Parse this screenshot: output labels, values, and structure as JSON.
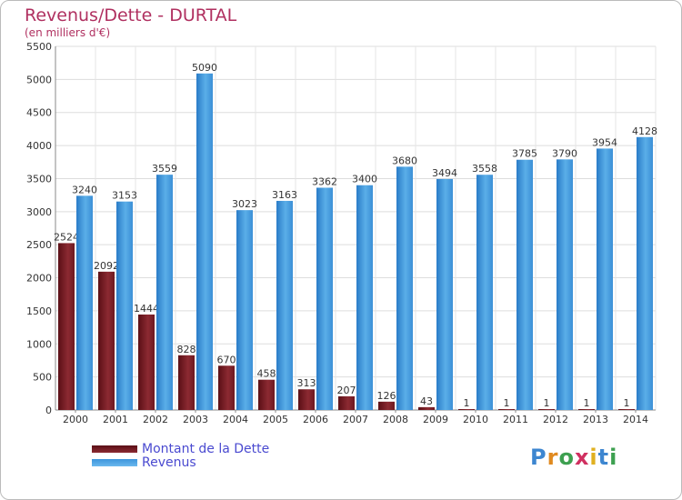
{
  "title": "Revenus/Dette - DURTAL",
  "subtitle": "(en milliers d'€)",
  "logo_text": "Proxiti",
  "colors": {
    "dette": "#7a1c24",
    "revenus": "#3d95dc",
    "title": "#b03060",
    "legend": "#4a4ad0"
  },
  "chart_data": {
    "type": "bar",
    "categories": [
      "2000",
      "2001",
      "2002",
      "2003",
      "2004",
      "2005",
      "2006",
      "2007",
      "2008",
      "2009",
      "2010",
      "2011",
      "2012",
      "2013",
      "2014"
    ],
    "series": [
      {
        "name": "Montant de la Dette",
        "values": [
          2524,
          2092,
          1444,
          828,
          670,
          458,
          313,
          207,
          126,
          43,
          1,
          1,
          1,
          1,
          1
        ],
        "labels": [
          "2524",
          "2092",
          "1444",
          "828",
          "670",
          "458",
          "313",
          "207",
          "126",
          "43",
          "1",
          "1",
          "1",
          "1",
          "1"
        ]
      },
      {
        "name": "Revenus",
        "values": [
          3240,
          3153,
          3559,
          5090,
          3023,
          3163,
          3362,
          3400,
          3680,
          3494,
          3558,
          3785,
          3790,
          3954,
          4128
        ],
        "labels": [
          "3240",
          "3153",
          "3559",
          "5090",
          "3023",
          "3163",
          "3362",
          "3400",
          "3680",
          "3494",
          "3558",
          "3785",
          "3790",
          "3954",
          "4128"
        ]
      }
    ],
    "yticks": [
      "0",
      "500",
      "1000",
      "1500",
      "2000",
      "2500",
      "3000",
      "3500",
      "4000",
      "4500",
      "5000",
      "5500"
    ],
    "ylim": [
      0,
      5500
    ],
    "grid": true,
    "legend_position": "bottom-left"
  }
}
